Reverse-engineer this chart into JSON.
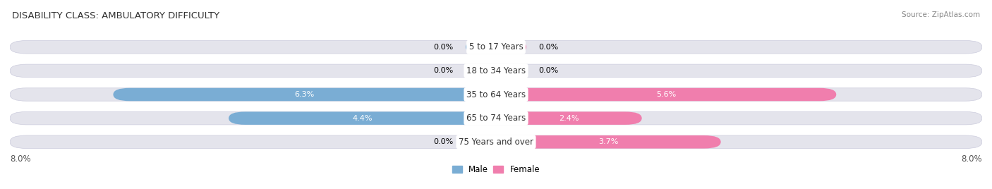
{
  "title": "DISABILITY CLASS: AMBULATORY DIFFICULTY",
  "source": "Source: ZipAtlas.com",
  "categories": [
    "5 to 17 Years",
    "18 to 34 Years",
    "35 to 64 Years",
    "65 to 74 Years",
    "75 Years and over"
  ],
  "male_values": [
    0.0,
    0.0,
    6.3,
    4.4,
    0.0
  ],
  "female_values": [
    0.0,
    0.0,
    5.6,
    2.4,
    3.7
  ],
  "male_color": "#7aadd4",
  "female_color": "#f07ead",
  "bar_bg_color": "#e4e4ec",
  "max_val": 8.0,
  "min_bar_val": 0.5,
  "legend_male": "Male",
  "legend_female": "Female",
  "title_fontsize": 9.5,
  "axis_label_fontsize": 8.5,
  "bar_label_fontsize": 8.0,
  "cat_label_fontsize": 8.5
}
